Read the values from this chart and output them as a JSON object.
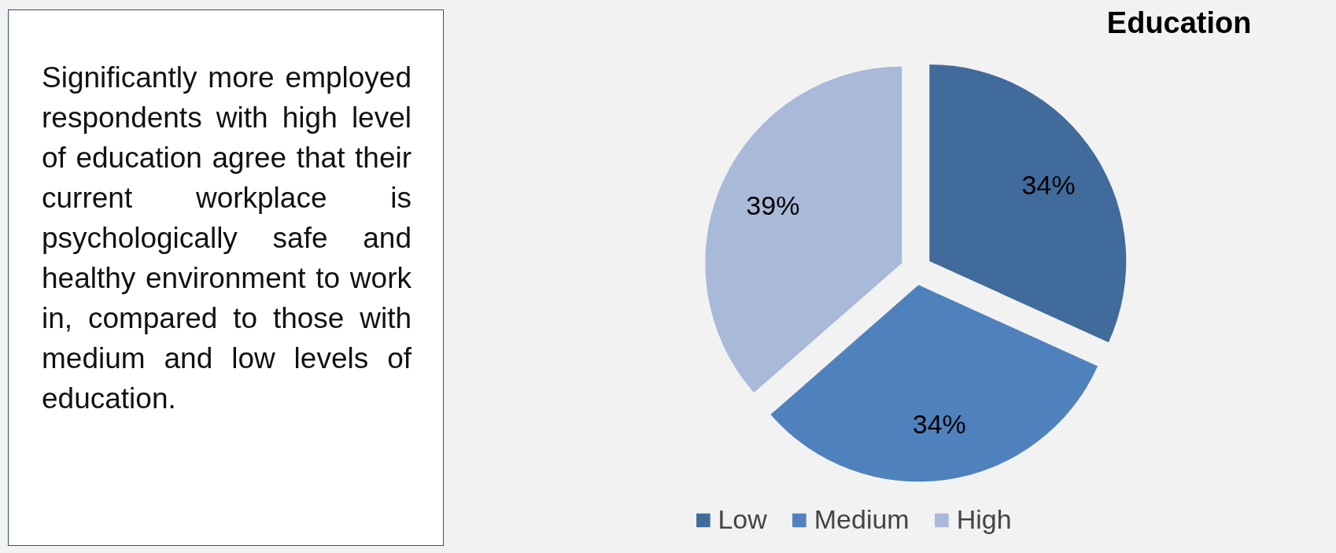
{
  "chart_data": {
    "type": "pie",
    "title": "Education",
    "categories": [
      "Low",
      "Medium",
      "High"
    ],
    "values": [
      34,
      34,
      39
    ],
    "colors": [
      "#416b9b",
      "#4f81bd",
      "#a9b9d8"
    ],
    "value_labels": [
      "34%",
      "34%",
      "39%"
    ],
    "legend": "bottom",
    "annotations": [
      "Significantly more employed respondents with high level of education agree that their current workplace is psychologically safe and healthy environment to work in, compared to those with medium and low levels of education."
    ]
  }
}
